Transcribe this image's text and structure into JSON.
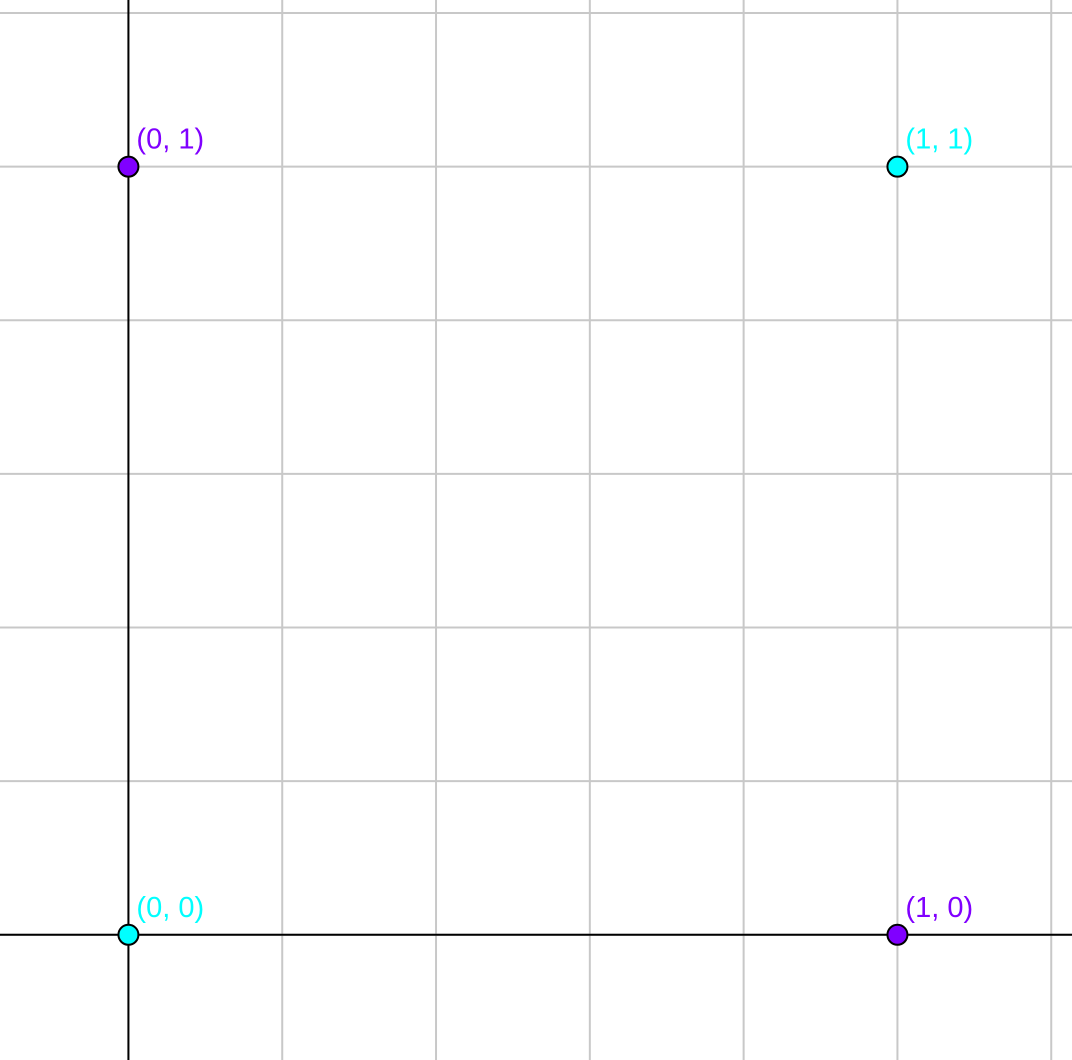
{
  "chart_data": {
    "type": "scatter",
    "title": "",
    "xlabel": "",
    "ylabel": "",
    "grid": true,
    "xlim": [
      -0.167,
      1.227
    ],
    "ylim": [
      -0.163,
      1.217
    ],
    "grid_step": 0.2,
    "points": [
      {
        "x": 0,
        "y": 1,
        "label": "(0, 1)",
        "color": "#8000ff"
      },
      {
        "x": 1,
        "y": 1,
        "label": "(1, 1)",
        "color": "#00ffff"
      },
      {
        "x": 0,
        "y": 0,
        "label": "(0, 0)",
        "color": "#00ffff"
      },
      {
        "x": 1,
        "y": 0,
        "label": "(1, 0)",
        "color": "#8000ff"
      }
    ]
  }
}
